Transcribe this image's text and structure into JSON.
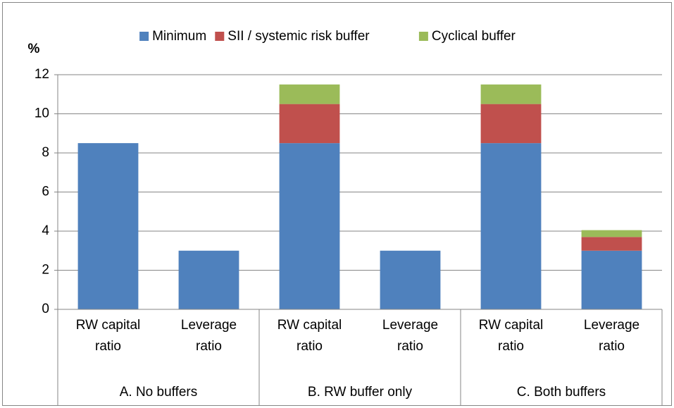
{
  "chart_data": {
    "type": "bar",
    "stacked": true,
    "y_label": "%",
    "categories": [
      "RW capital ratio",
      "Leverage ratio",
      "RW capital ratio",
      "Leverage ratio",
      "RW capital ratio",
      "Leverage ratio"
    ],
    "groups": [
      "A. No buffers",
      "B. RW buffer only",
      "C. Both buffers"
    ],
    "series": [
      {
        "name": "Minimum",
        "color": "#4f81bd",
        "values": [
          8.5,
          3,
          8.5,
          3,
          8.5,
          3
        ]
      },
      {
        "name": "SII / systemic risk buffer",
        "color": "#c0504d",
        "values": [
          0,
          0,
          2,
          0,
          2,
          0.7
        ]
      },
      {
        "name": "Cyclical buffer",
        "color": "#9bbb59",
        "values": [
          0,
          0,
          1,
          0,
          1,
          0.35
        ]
      }
    ],
    "ylim": [
      0,
      12
    ],
    "yticks": [
      0,
      2,
      4,
      6,
      8,
      10,
      12
    ],
    "grid": true,
    "legend": "top"
  }
}
